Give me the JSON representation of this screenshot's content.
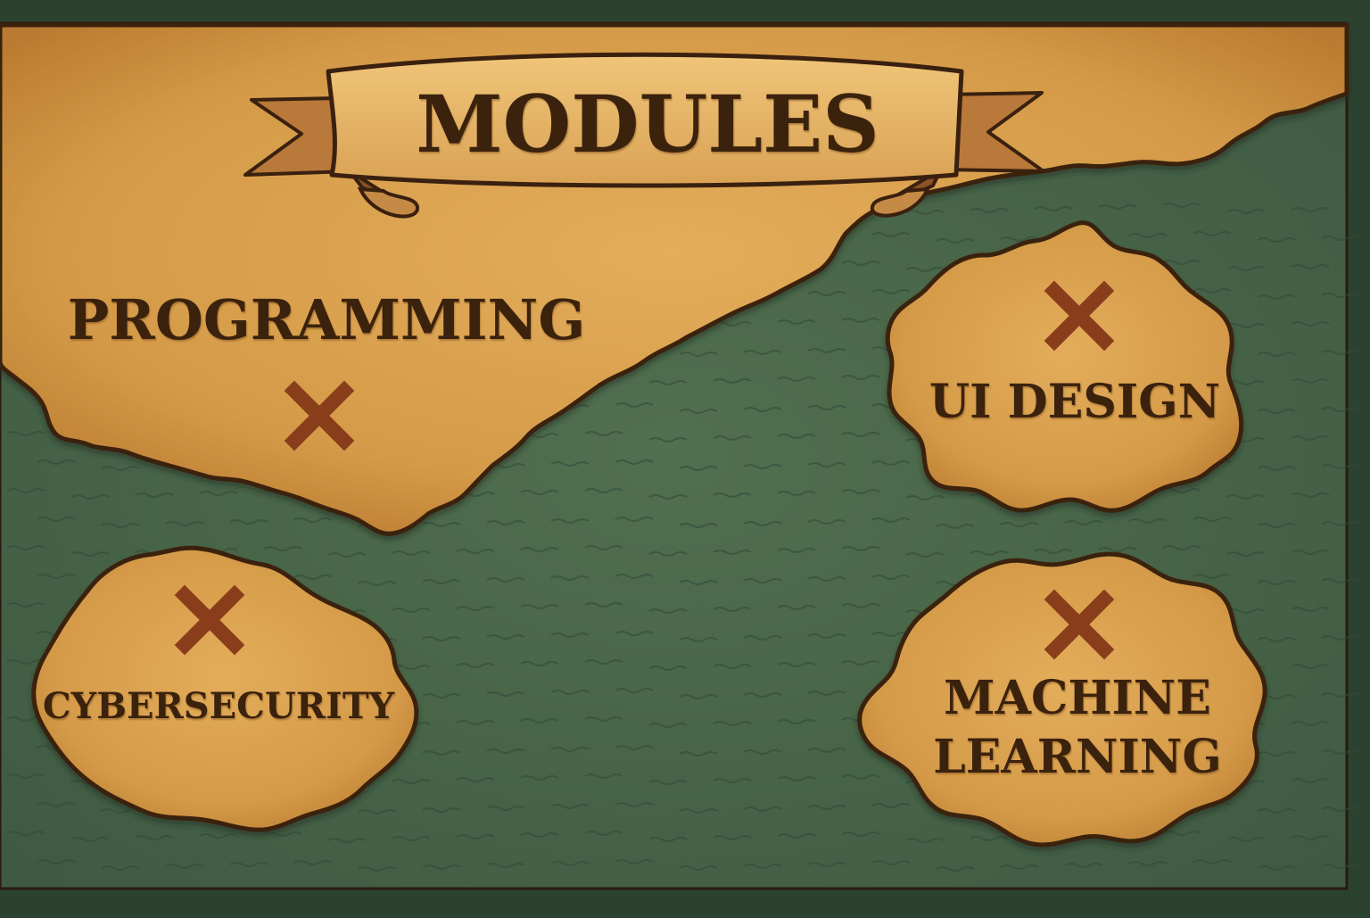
{
  "title": "MODULES",
  "modules": [
    {
      "id": "programming",
      "label_lines": [
        "PROGRAMMING"
      ]
    },
    {
      "id": "ui-design",
      "label_lines": [
        "UI DESIGN"
      ]
    },
    {
      "id": "cybersecurity",
      "label_lines": [
        "CYBERSECURITY"
      ]
    },
    {
      "id": "machine-learning",
      "label_lines": [
        "MACHINE",
        "LEARNING"
      ]
    }
  ],
  "colors": {
    "sea": "#4a6549",
    "frame": "#2c4230",
    "parchment": "#d49a48",
    "outline": "#3a200f",
    "x_mark": "#8a3d1a"
  },
  "icons": {
    "location_marker": "x-mark-icon",
    "title_banner": "ribbon-banner"
  }
}
